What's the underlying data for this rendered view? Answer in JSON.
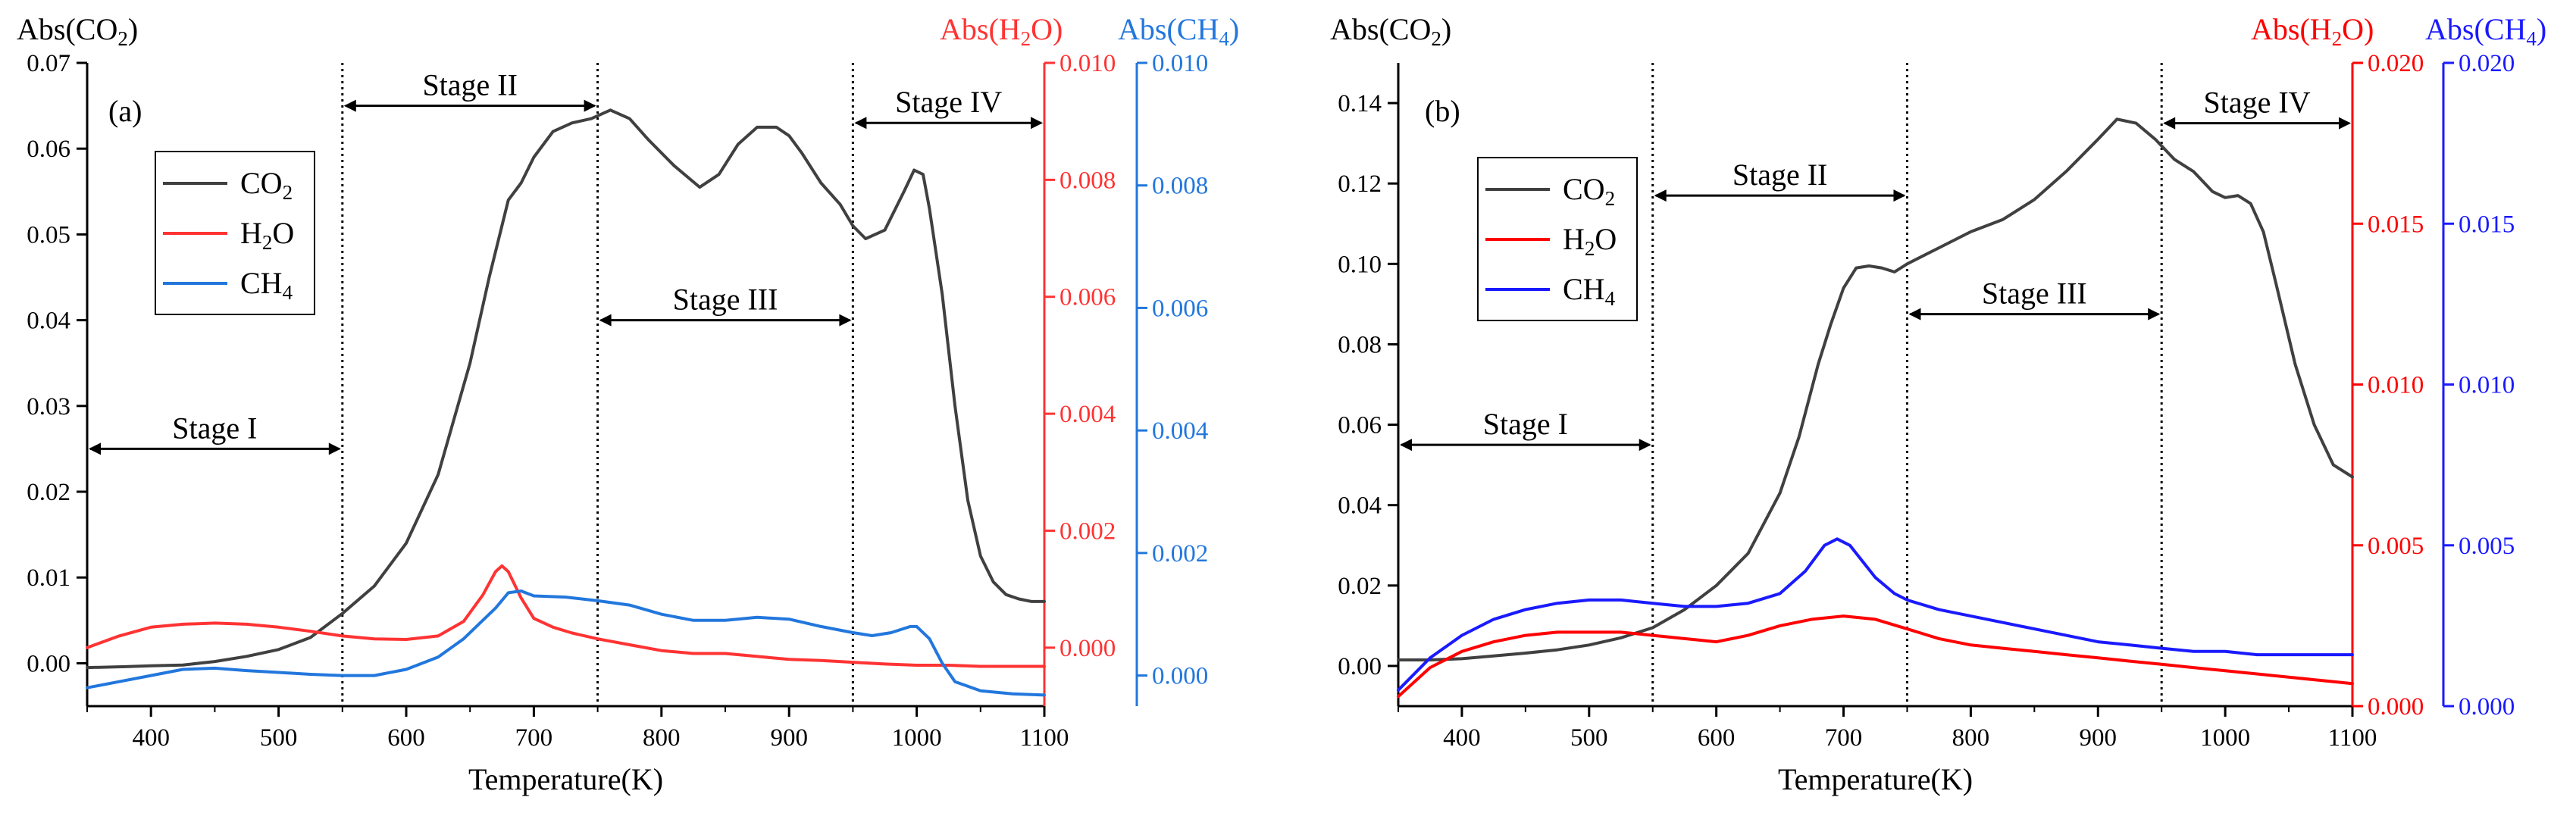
{
  "chart_data": [
    {
      "type": "line",
      "panel_label": "(a)",
      "xlabel": "Temperature(K)",
      "ylabel_left": "Abs(CO₂)",
      "ylabel_right1": "Abs(H₂O)",
      "ylabel_right2": "Abs(CH₄)",
      "xlim": [
        350,
        1100
      ],
      "ylim_left": [
        -0.005,
        0.07
      ],
      "ylim_right1": [
        -0.001,
        0.01
      ],
      "ylim_right2": [
        -0.0005,
        0.01
      ],
      "xticks": [
        "400",
        "500",
        "600",
        "700",
        "800",
        "900",
        "1000",
        "1100"
      ],
      "yticks_left": [
        "0.00",
        "0.01",
        "0.02",
        "0.03",
        "0.04",
        "0.05",
        "0.06",
        "0.07"
      ],
      "yticks_right1": [
        "0.000",
        "0.002",
        "0.004",
        "0.006",
        "0.008",
        "0.010"
      ],
      "yticks_right2": [
        "0.000",
        "0.002",
        "0.004",
        "0.006",
        "0.008",
        "0.010"
      ],
      "stage_lines": [
        550,
        750,
        950
      ],
      "stages": [
        {
          "label": "Stage I",
          "from": 350,
          "to": 550,
          "y": 0.025
        },
        {
          "label": "Stage II",
          "from": 550,
          "to": 750,
          "y": 0.065
        },
        {
          "label": "Stage III",
          "from": 750,
          "to": 950,
          "y": 0.04
        },
        {
          "label": "Stage IV",
          "from": 950,
          "to": 1100,
          "y": 0.063
        }
      ],
      "legend": [
        {
          "label": "CO₂",
          "color": "#404040"
        },
        {
          "label": "H₂O",
          "color": "#ff3333"
        },
        {
          "label": "CH₄",
          "color": "#2277dd"
        }
      ],
      "series": [
        {
          "name": "CO₂",
          "axis": "left",
          "color": "#404040",
          "x": [
            350,
            380,
            400,
            425,
            450,
            475,
            500,
            525,
            550,
            575,
            600,
            625,
            650,
            665,
            680,
            690,
            700,
            715,
            730,
            745,
            760,
            775,
            790,
            810,
            830,
            845,
            860,
            875,
            890,
            900,
            910,
            925,
            940,
            950,
            960,
            975,
            990,
            998,
            1005,
            1010,
            1020,
            1030,
            1040,
            1050,
            1060,
            1070,
            1080,
            1090,
            1100
          ],
          "values": [
            -0.0005,
            -0.0004,
            -0.0003,
            -0.0002,
            0.0002,
            0.0008,
            0.0016,
            0.003,
            0.0058,
            0.009,
            0.014,
            0.022,
            0.035,
            0.045,
            0.054,
            0.056,
            0.059,
            0.062,
            0.063,
            0.0635,
            0.0645,
            0.0635,
            0.061,
            0.058,
            0.0555,
            0.057,
            0.0605,
            0.0625,
            0.0625,
            0.0615,
            0.0595,
            0.056,
            0.0535,
            0.051,
            0.0495,
            0.0505,
            0.055,
            0.0575,
            0.057,
            0.053,
            0.043,
            0.03,
            0.019,
            0.0125,
            0.0095,
            0.008,
            0.0075,
            0.0072,
            0.0072
          ]
        },
        {
          "name": "H₂O",
          "axis": "right1",
          "color": "#ff3333",
          "x": [
            350,
            375,
            400,
            425,
            450,
            475,
            500,
            525,
            550,
            575,
            600,
            625,
            645,
            660,
            670,
            675,
            680,
            690,
            700,
            715,
            730,
            750,
            775,
            800,
            825,
            850,
            875,
            900,
            925,
            950,
            975,
            1000,
            1025,
            1050,
            1075,
            1100
          ],
          "values": [
            0.0,
            0.0002,
            0.00035,
            0.0004,
            0.00042,
            0.0004,
            0.00035,
            0.00028,
            0.0002,
            0.00015,
            0.00014,
            0.0002,
            0.00045,
            0.0009,
            0.0013,
            0.0014,
            0.0013,
            0.00085,
            0.0005,
            0.00035,
            0.00025,
            0.00015,
            5e-05,
            -5e-05,
            -0.0001,
            -0.0001,
            -0.00015,
            -0.0002,
            -0.00022,
            -0.00025,
            -0.00028,
            -0.0003,
            -0.0003,
            -0.00032,
            -0.00032,
            -0.00032
          ]
        },
        {
          "name": "CH₄",
          "axis": "right2",
          "color": "#2277dd",
          "x": [
            350,
            375,
            400,
            425,
            450,
            475,
            500,
            525,
            550,
            575,
            600,
            625,
            645,
            660,
            670,
            680,
            690,
            700,
            725,
            750,
            775,
            800,
            825,
            850,
            875,
            900,
            925,
            950,
            965,
            980,
            995,
            1000,
            1010,
            1020,
            1030,
            1050,
            1075,
            1100
          ],
          "values": [
            -0.0002,
            -0.0001,
            0.0,
            0.0001,
            0.00012,
            8e-05,
            5e-05,
            2e-05,
            0.0,
            0.0,
            0.0001,
            0.0003,
            0.0006,
            0.0009,
            0.0011,
            0.00135,
            0.00138,
            0.0013,
            0.00128,
            0.00122,
            0.00115,
            0.001,
            0.0009,
            0.0009,
            0.00095,
            0.00092,
            0.0008,
            0.0007,
            0.00065,
            0.0007,
            0.0008,
            0.0008,
            0.0006,
            0.0002,
            -0.0001,
            -0.00025,
            -0.0003,
            -0.00032
          ]
        }
      ]
    },
    {
      "type": "line",
      "panel_label": "(b)",
      "xlabel": "Temperature(K)",
      "ylabel_left": "Abs(CO₂)",
      "ylabel_right1": "Abs(H₂O)",
      "ylabel_right2": "Abs(CH₄)",
      "xlim": [
        350,
        1100
      ],
      "ylim_left": [
        -0.01,
        0.15
      ],
      "ylim_right1": [
        0.0,
        0.02
      ],
      "ylim_right2": [
        0.0,
        0.02
      ],
      "xticks": [
        "400",
        "500",
        "600",
        "700",
        "800",
        "900",
        "1000",
        "1100"
      ],
      "yticks_left": [
        "0.00",
        "0.02",
        "0.04",
        "0.06",
        "0.08",
        "0.10",
        "0.12",
        "0.14"
      ],
      "yticks_right1": [
        "0.000",
        "0.005",
        "0.010",
        "0.015",
        "0.020"
      ],
      "yticks_right2": [
        "0.000",
        "0.005",
        "0.010",
        "0.015",
        "0.020"
      ],
      "stage_lines": [
        550,
        750,
        950
      ],
      "stages": [
        {
          "label": "Stage I",
          "from": 350,
          "to": 550,
          "y": 0.055
        },
        {
          "label": "Stage II",
          "from": 550,
          "to": 750,
          "y": 0.117
        },
        {
          "label": "Stage III",
          "from": 750,
          "to": 950,
          "y": 0.0875
        },
        {
          "label": "Stage IV",
          "from": 950,
          "to": 1100,
          "y": 0.135
        }
      ],
      "legend": [
        {
          "label": "CO₂",
          "color": "#404040"
        },
        {
          "label": "H₂O",
          "color": "#ff0000"
        },
        {
          "label": "CH₄",
          "color": "#1a1aff"
        }
      ],
      "series": [
        {
          "name": "CO₂",
          "axis": "left",
          "color": "#404040",
          "x": [
            350,
            375,
            400,
            425,
            450,
            475,
            500,
            525,
            550,
            575,
            600,
            625,
            650,
            665,
            680,
            690,
            700,
            710,
            720,
            730,
            740,
            750,
            775,
            800,
            825,
            850,
            875,
            900,
            915,
            930,
            945,
            960,
            975,
            990,
            1000,
            1010,
            1020,
            1030,
            1040,
            1055,
            1070,
            1085,
            1100
          ],
          "values": [
            0.0015,
            0.0015,
            0.0018,
            0.0025,
            0.0032,
            0.004,
            0.0052,
            0.007,
            0.0095,
            0.014,
            0.02,
            0.028,
            0.043,
            0.057,
            0.075,
            0.085,
            0.094,
            0.099,
            0.0995,
            0.099,
            0.098,
            0.1,
            0.104,
            0.108,
            0.111,
            0.116,
            0.123,
            0.131,
            0.136,
            0.135,
            0.131,
            0.126,
            0.123,
            0.118,
            0.1165,
            0.117,
            0.115,
            0.108,
            0.095,
            0.075,
            0.06,
            0.05,
            0.047
          ]
        },
        {
          "name": "H₂O",
          "axis": "right1",
          "color": "#ff0000",
          "x": [
            350,
            375,
            400,
            425,
            450,
            475,
            500,
            525,
            550,
            575,
            600,
            625,
            650,
            675,
            700,
            725,
            750,
            775,
            800,
            825,
            850,
            875,
            900,
            925,
            950,
            975,
            1000,
            1025,
            1050,
            1075,
            1100
          ],
          "values": [
            0.0003,
            0.0012,
            0.0017,
            0.002,
            0.0022,
            0.0023,
            0.0023,
            0.0023,
            0.0022,
            0.0021,
            0.002,
            0.0022,
            0.0025,
            0.0027,
            0.0028,
            0.0027,
            0.0024,
            0.0021,
            0.0019,
            0.0018,
            0.0017,
            0.0016,
            0.0015,
            0.0014,
            0.0013,
            0.0012,
            0.0011,
            0.001,
            0.0009,
            0.0008,
            0.0007
          ]
        },
        {
          "name": "CH₄",
          "axis": "right2",
          "color": "#1a1aff",
          "x": [
            350,
            375,
            400,
            425,
            450,
            475,
            500,
            525,
            550,
            575,
            600,
            625,
            650,
            670,
            685,
            695,
            705,
            715,
            725,
            740,
            750,
            775,
            800,
            825,
            850,
            875,
            900,
            925,
            950,
            975,
            1000,
            1025,
            1050,
            1075,
            1100
          ],
          "values": [
            0.0005,
            0.0015,
            0.0022,
            0.0027,
            0.003,
            0.0032,
            0.0033,
            0.0033,
            0.0032,
            0.0031,
            0.0031,
            0.0032,
            0.0035,
            0.0042,
            0.005,
            0.0052,
            0.005,
            0.0045,
            0.004,
            0.0035,
            0.0033,
            0.003,
            0.0028,
            0.0026,
            0.0024,
            0.0022,
            0.002,
            0.0019,
            0.0018,
            0.0017,
            0.0017,
            0.0016,
            0.0016,
            0.0016,
            0.0016
          ]
        }
      ]
    }
  ]
}
